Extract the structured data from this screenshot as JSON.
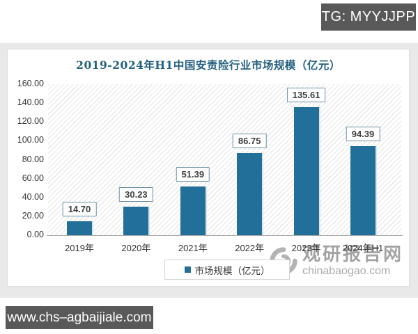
{
  "overlay": {
    "tg_badge": "TG: MYYJJPP",
    "site_badge": "www.chs–agbaijiale.com"
  },
  "chart_data": {
    "type": "bar",
    "title": "2019-2024年H1中国安责险行业市场规模（亿元）",
    "categories": [
      "2019年",
      "2020年",
      "2021年",
      "2022年",
      "2023年",
      "2024年H1"
    ],
    "values": [
      14.7,
      30.23,
      51.39,
      86.75,
      135.61,
      94.39
    ],
    "value_labels": [
      "14.70",
      "30.23",
      "51.39",
      "86.75",
      "135.61",
      "94.39"
    ],
    "series_name": "市场规模（亿元）",
    "xlabel": "",
    "ylabel": "",
    "ylim": [
      0,
      160
    ],
    "y_tick_labels": [
      "160.00",
      "140.00",
      "120.00",
      "100.00",
      "80.00",
      "60.00",
      "40.00",
      "20.00",
      "0.00"
    ],
    "legend_position": "bottom",
    "grid": false,
    "plot_background": "diagonal-hatch",
    "bar_color": "#226F99"
  },
  "watermark": {
    "brand": "观研报告网",
    "domain": "chinabaogao.com"
  },
  "colors": {
    "bar": "#226F99",
    "title_text": "#235F80",
    "badge_background": "#595959",
    "band_background": "#E9E9E9"
  }
}
